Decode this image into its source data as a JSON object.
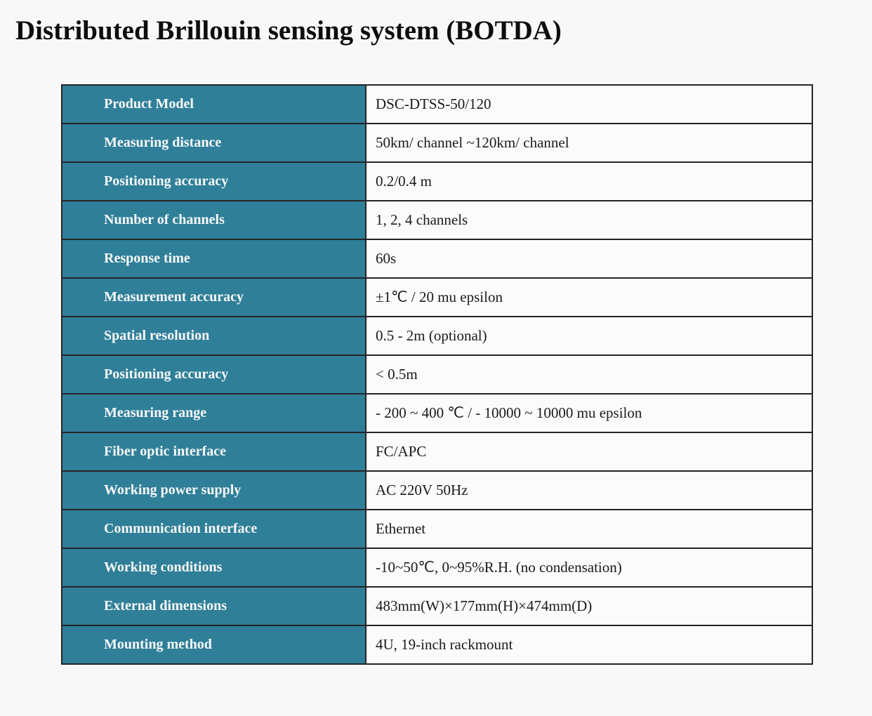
{
  "page": {
    "title": "Distributed Brillouin sensing system (BOTDA)"
  },
  "colors": {
    "page_bg": "#f8f8f8",
    "header_bg": "#2f7f99",
    "header_text": "#f8f8f8",
    "value_bg": "#fbfbfb",
    "value_text": "#1a1a1a",
    "border": "#242424",
    "title_text": "#0d0d0d"
  },
  "table": {
    "rows": [
      {
        "label": "Product Model",
        "value": "DSC-DTSS-50/120"
      },
      {
        "label": "Measuring distance",
        "value": "50km/ channel ~120km/ channel"
      },
      {
        "label": "Positioning accuracy",
        "value": "0.2/0.4 m"
      },
      {
        "label": "Number of channels",
        "value": "1, 2, 4 channels"
      },
      {
        "label": "Response time",
        "value": "60s"
      },
      {
        "label": "Measurement accuracy",
        "value": "±1℃ / 20 mu epsilon"
      },
      {
        "label": "Spatial resolution",
        "value": "0.5 - 2m (optional)"
      },
      {
        "label": "Positioning accuracy",
        "value": "< 0.5m"
      },
      {
        "label": "Measuring range",
        "value": "- 200 ~ 400 ℃ / - 10000 ~ 10000 mu epsilon"
      },
      {
        "label": "Fiber optic interface",
        "value": "FC/APC"
      },
      {
        "label": "Working power supply",
        "value": "AC 220V 50Hz"
      },
      {
        "label": "Communication interface",
        "value": "Ethernet"
      },
      {
        "label": "Working conditions",
        "value": "-10~50℃, 0~95%R.H. (no condensation)"
      },
      {
        "label": "External dimensions",
        "value": "483mm(W)×177mm(H)×474mm(D)"
      },
      {
        "label": "Mounting method",
        "value": "4U, 19-inch rackmount"
      }
    ]
  }
}
